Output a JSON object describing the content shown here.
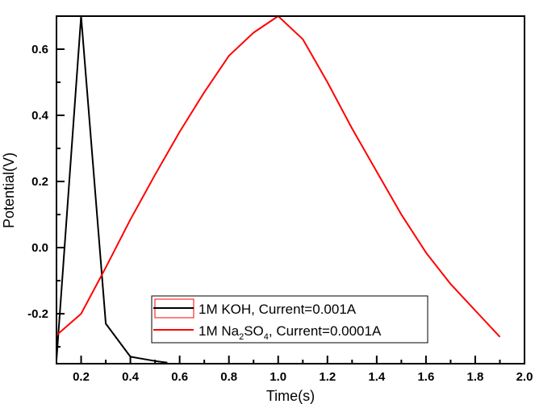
{
  "chart_data": {
    "type": "line",
    "title": "",
    "xlabel": "Time(s)",
    "ylabel": "Potential(V)",
    "xlim": [
      0.1,
      2.0
    ],
    "ylim": [
      -0.351,
      0.7
    ],
    "grid": false,
    "legend_position": "bottom-center",
    "x_ticks": [
      {
        "value": 0.2,
        "label": "0.2"
      },
      {
        "value": 0.4,
        "label": "0.4"
      },
      {
        "value": 0.6,
        "label": "0.6"
      },
      {
        "value": 0.8,
        "label": "0.8"
      },
      {
        "value": 1.0,
        "label": "1.0"
      },
      {
        "value": 1.2,
        "label": "1.2"
      },
      {
        "value": 1.4,
        "label": "1.4"
      },
      {
        "value": 1.6,
        "label": "1.6"
      },
      {
        "value": 1.8,
        "label": "1.8"
      },
      {
        "value": 2.0,
        "label": "2.0"
      }
    ],
    "x_minor_ticks": [
      0.3,
      0.5,
      0.7,
      0.9,
      1.1,
      1.3,
      1.5,
      1.7,
      1.9
    ],
    "y_ticks": [
      {
        "value": -0.2,
        "label": "-0.2"
      },
      {
        "value": 0.0,
        "label": "0.0"
      },
      {
        "value": 0.2,
        "label": "0.2"
      },
      {
        "value": 0.4,
        "label": "0.4"
      },
      {
        "value": 0.6,
        "label": "0.6"
      }
    ],
    "y_minor_ticks": [
      -0.3,
      -0.1,
      0.1,
      0.3,
      0.5
    ],
    "series": [
      {
        "name": "1M KOH, Current=0.001A",
        "legend_parts": {
          "pre": "1M KOH, Current=0.001A",
          "sub1": "",
          "mid": "",
          "sub2": "",
          "post": ""
        },
        "color": "#000000",
        "x": [
          0.1,
          0.2,
          0.3,
          0.4,
          0.5,
          0.55
        ],
        "y": [
          -0.34,
          0.7,
          -0.23,
          -0.33,
          -0.343,
          -0.348
        ]
      },
      {
        "name": "1M Na2SO4, Current=0.0001A",
        "legend_parts": {
          "pre": "1M Na",
          "sub1": "2",
          "mid": "SO",
          "sub2": "4",
          "post": ", Current=0.0001A"
        },
        "color": "#ff0000",
        "x": [
          0.1,
          0.2,
          0.3,
          0.4,
          0.5,
          0.6,
          0.7,
          0.8,
          0.9,
          1.0,
          1.1,
          1.2,
          1.3,
          1.4,
          1.5,
          1.6,
          1.7,
          1.8,
          1.9
        ],
        "y": [
          -0.265,
          -0.2,
          -0.06,
          0.085,
          0.22,
          0.35,
          0.47,
          0.58,
          0.65,
          0.7,
          0.63,
          0.5,
          0.36,
          0.23,
          0.1,
          -0.015,
          -0.11,
          -0.19,
          -0.27
        ]
      }
    ]
  }
}
